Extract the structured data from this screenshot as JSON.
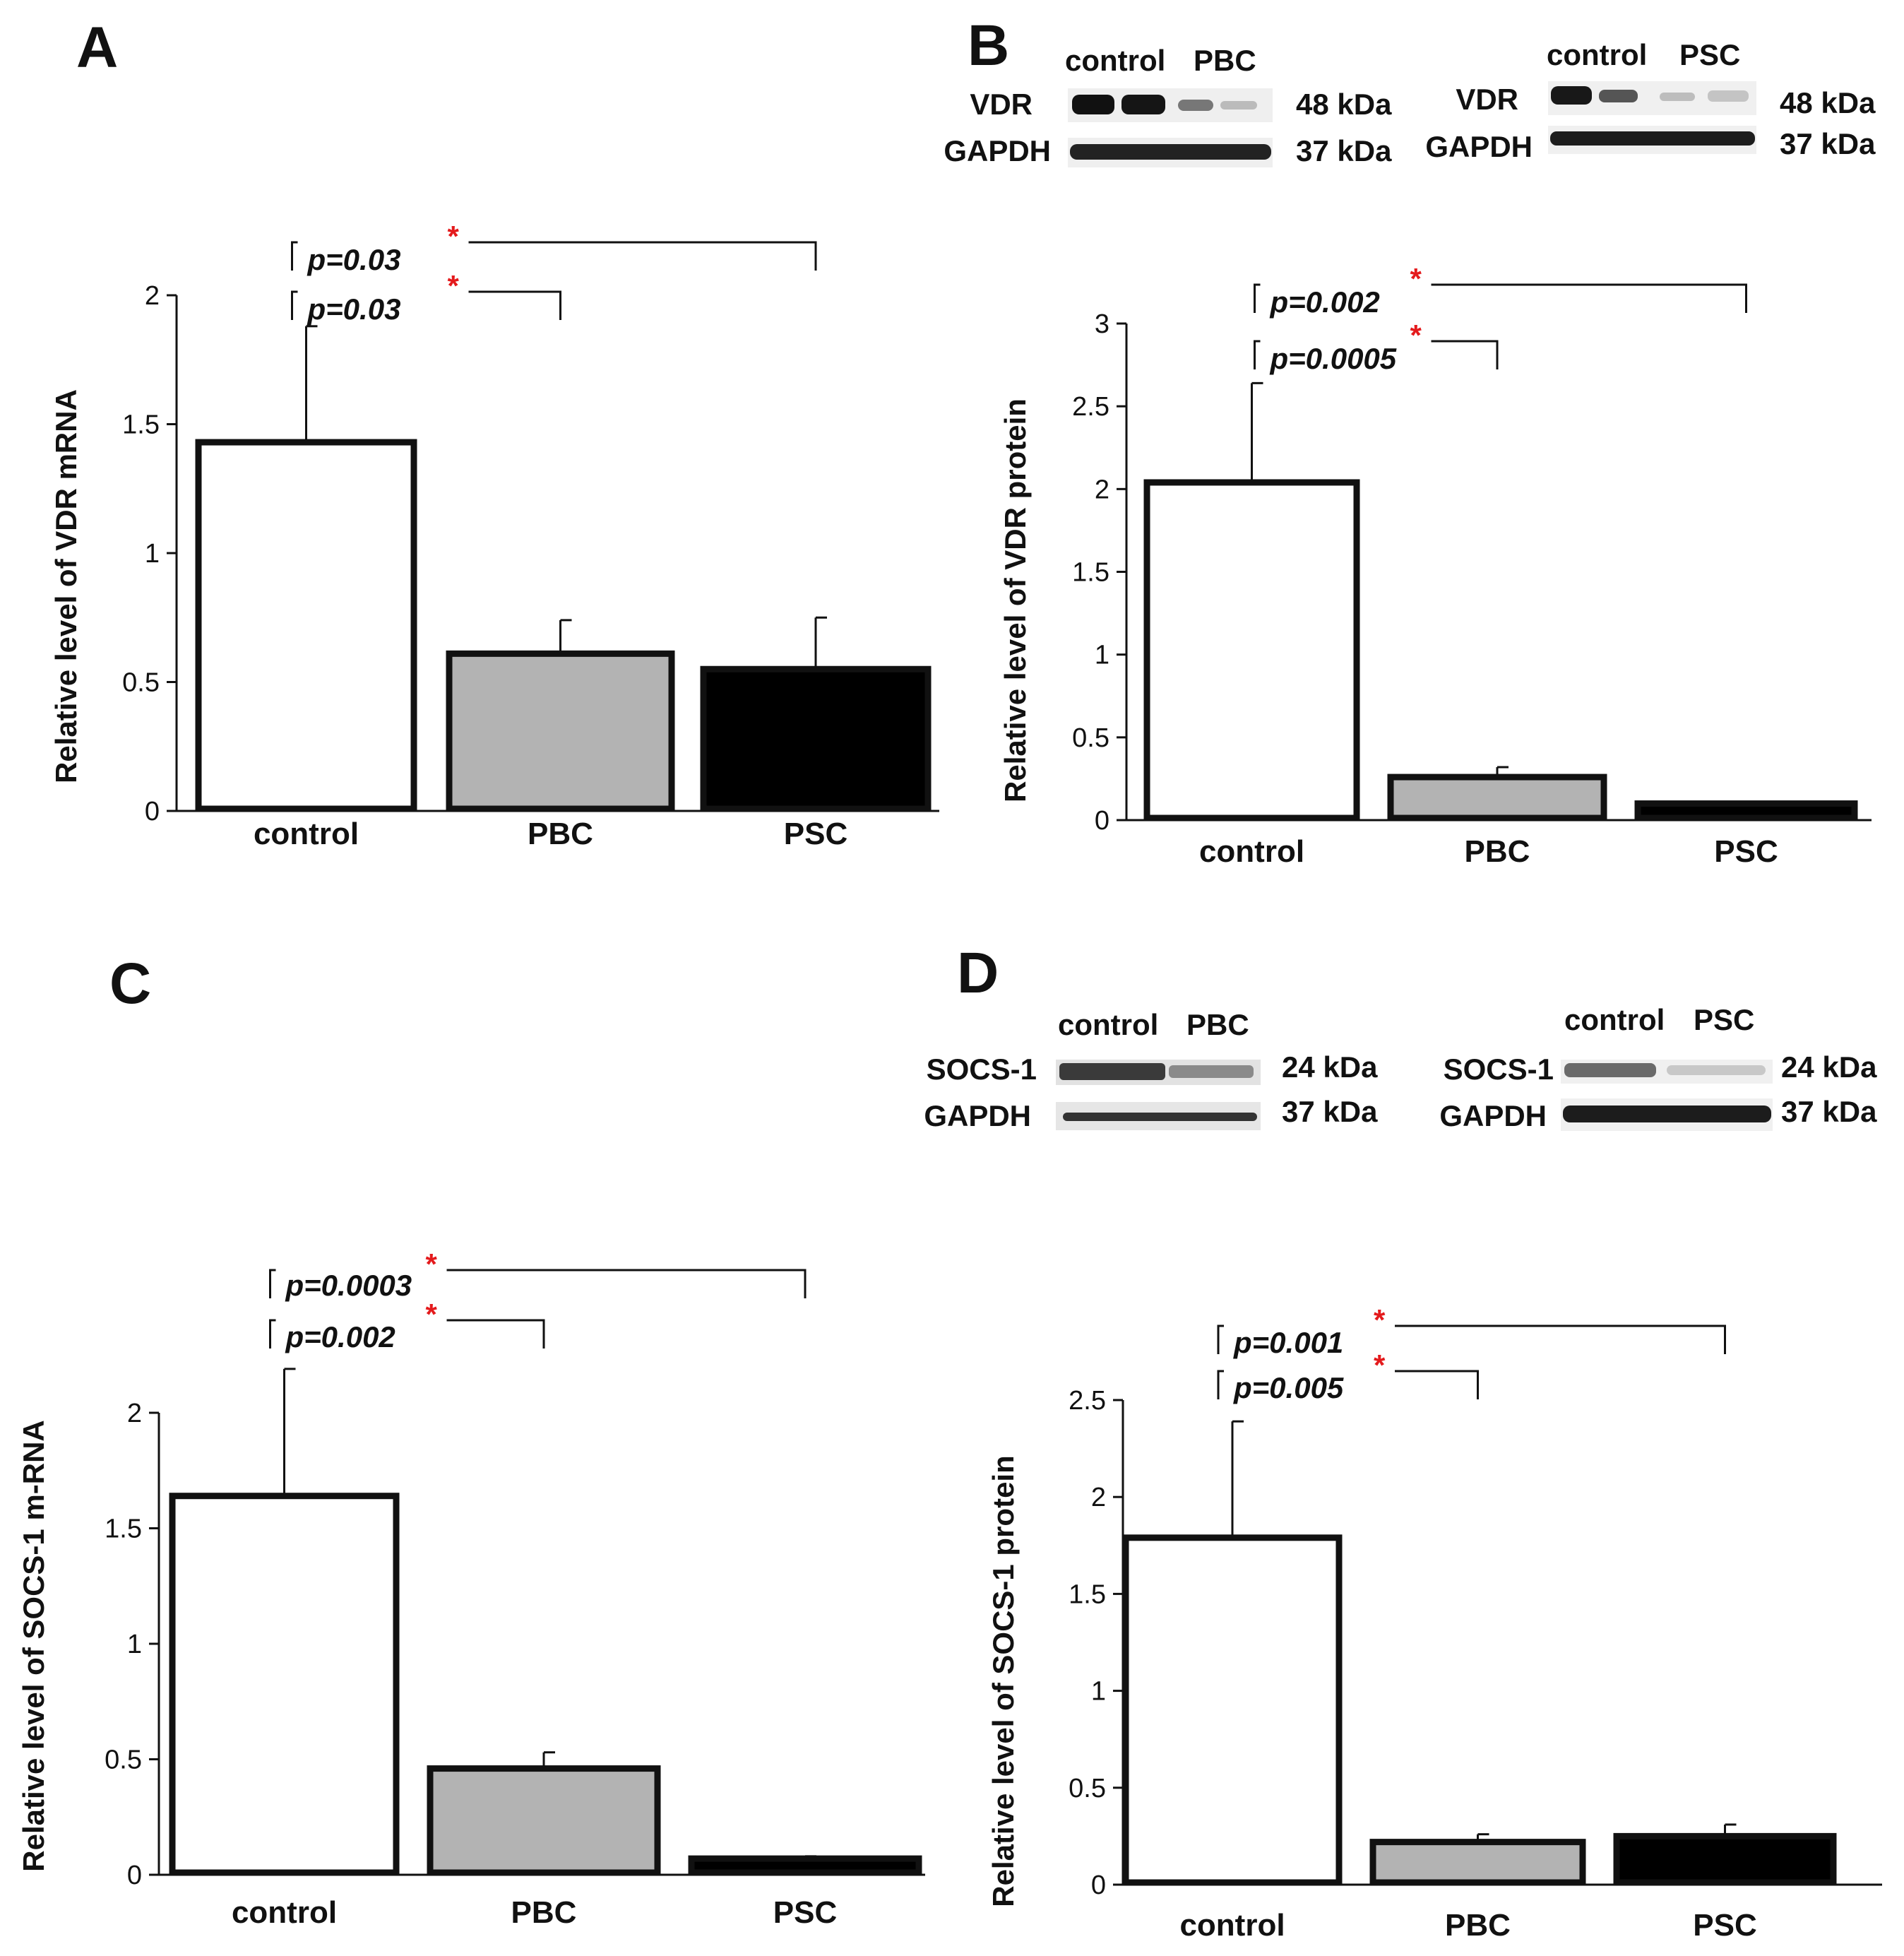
{
  "colors": {
    "control": "#ffffff",
    "PBC": "#b3b3b3",
    "PSC": "#000000",
    "star": "#e41a1c",
    "axis": "#111111"
  },
  "blots": {
    "B": {
      "letter": "B",
      "left": {
        "lanes": [
          "control",
          "PBC"
        ],
        "rows": [
          {
            "protein": "VDR",
            "size": "48 kDa"
          },
          {
            "protein": "GAPDH",
            "size": "37 kDa"
          }
        ]
      },
      "right": {
        "lanes": [
          "control",
          "PSC"
        ],
        "rows": [
          {
            "protein": "VDR",
            "size": "48 kDa"
          },
          {
            "protein": "GAPDH",
            "size": "37 kDa"
          }
        ]
      }
    },
    "D": {
      "letter": "D",
      "left": {
        "lanes": [
          "control",
          "PBC"
        ],
        "rows": [
          {
            "protein": "SOCS-1",
            "size": "24 kDa"
          },
          {
            "protein": "GAPDH",
            "size": "37 kDa"
          }
        ]
      },
      "right": {
        "lanes": [
          "control",
          "PSC"
        ],
        "rows": [
          {
            "protein": "SOCS-1",
            "size": "24 kDa"
          },
          {
            "protein": "GAPDH",
            "size": "37 kDa"
          }
        ]
      }
    }
  },
  "chart_data": [
    {
      "panel": "A",
      "type": "bar",
      "title": "",
      "categories": [
        "control",
        "PBC",
        "PSC"
      ],
      "values": [
        1.43,
        0.61,
        0.55
      ],
      "errors": [
        0.45,
        0.13,
        0.2
      ],
      "xlabel": "",
      "ylabel": "Relative level of VDR mRNA",
      "ylim": [
        0,
        2
      ],
      "yticks": [
        "0",
        "0.5",
        "1",
        "1.5",
        "2"
      ],
      "significance": [
        {
          "from": "control",
          "to": "PBC",
          "p": "p=0.03",
          "mark": "*"
        },
        {
          "from": "control",
          "to": "PSC",
          "p": "p=0.03",
          "mark": "*"
        }
      ]
    },
    {
      "panel": "B",
      "type": "bar",
      "title": "",
      "categories": [
        "control",
        "PBC",
        "PSC"
      ],
      "values": [
        2.04,
        0.26,
        0.1
      ],
      "errors": [
        0.6,
        0.06,
        0.01
      ],
      "xlabel": "",
      "ylabel": "Relative level of VDR protein",
      "ylim": [
        0,
        3
      ],
      "yticks": [
        "0",
        "0.5",
        "1",
        "1.5",
        "2",
        "2.5",
        "3"
      ],
      "significance": [
        {
          "from": "control",
          "to": "PBC",
          "p": "p=0.0005",
          "mark": "*"
        },
        {
          "from": "control",
          "to": "PSC",
          "p": "p=0.002",
          "mark": "*"
        }
      ]
    },
    {
      "panel": "C",
      "type": "bar",
      "title": "",
      "categories": [
        "control",
        "PBC",
        "PSC"
      ],
      "values": [
        1.64,
        0.46,
        0.07
      ],
      "errors": [
        0.55,
        0.07,
        0.01
      ],
      "xlabel": "",
      "ylabel": "Relative level of SOCS-1 m-RNA",
      "ylim": [
        0,
        2
      ],
      "yticks": [
        "0",
        "0.5",
        "1",
        "1.5",
        "2"
      ],
      "significance": [
        {
          "from": "control",
          "to": "PBC",
          "p": "p=0.002",
          "mark": "*"
        },
        {
          "from": "control",
          "to": "PSC",
          "p": "p=0.0003",
          "mark": "*"
        }
      ]
    },
    {
      "panel": "D",
      "type": "bar",
      "title": "",
      "categories": [
        "control",
        "PBC",
        "PSC"
      ],
      "values": [
        1.79,
        0.22,
        0.25
      ],
      "errors": [
        0.6,
        0.04,
        0.06
      ],
      "xlabel": "",
      "ylabel": "Relative level of SOCS-1 protein",
      "ylim": [
        0,
        2.5
      ],
      "yticks": [
        "0",
        "0.5",
        "1",
        "1.5",
        "2",
        "2.5"
      ],
      "significance": [
        {
          "from": "control",
          "to": "PBC",
          "p": "p=0.005",
          "mark": "*"
        },
        {
          "from": "control",
          "to": "PSC",
          "p": "p=0.001",
          "mark": "*"
        }
      ]
    }
  ]
}
